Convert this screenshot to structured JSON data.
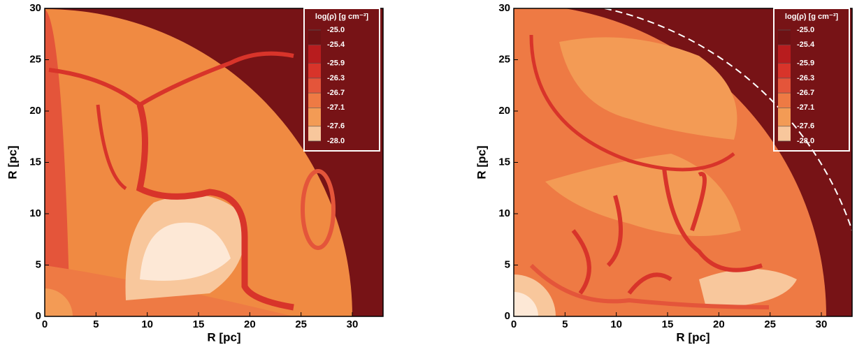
{
  "chart_data": [
    {
      "type": "contour",
      "xlabel": "R [pc]",
      "ylabel": "R [pc]",
      "xlim": [
        0,
        33
      ],
      "ylim": [
        0,
        30
      ],
      "xticks": [
        0,
        5,
        10,
        15,
        20,
        25,
        30
      ],
      "yticks": [
        0,
        5,
        10,
        15,
        20,
        25,
        30
      ],
      "colorbar": {
        "title": "log(ρ) [g cm⁻³]",
        "levels": [
          {
            "value": -25,
            "label": "-25.0"
          },
          -25.4,
          -25.9,
          -26.3,
          -26.7,
          -27.1,
          -27.6,
          {
            "value": -28,
            "label": "-28.0"
          }
        ],
        "colors": [
          "#6e1214",
          "#b81c1e",
          "#d8342a",
          "#e4553a",
          "#ee7a44",
          "#f39b55",
          "#f8c79c",
          "#ffffff"
        ]
      }
    },
    {
      "type": "contour",
      "xlabel": "R [pc]",
      "ylabel": "R [pc]",
      "xlim": [
        0,
        33
      ],
      "ylim": [
        0,
        30
      ],
      "xticks": [
        0,
        5,
        10,
        15,
        20,
        25,
        30
      ],
      "yticks": [
        0,
        5,
        10,
        15,
        20,
        25,
        30
      ],
      "colorbar": {
        "title": "log(ρ) [g cm⁻³]",
        "levels": [
          {
            "value": -25,
            "label": "-25.0"
          },
          -25.4,
          -25.9,
          -26.3,
          -26.7,
          -27.1,
          -27.6,
          {
            "value": -28,
            "label": "-28.0"
          }
        ],
        "colors": [
          "#6e1214",
          "#b81c1e",
          "#d8342a",
          "#e4553a",
          "#ee7a44",
          "#f39b55",
          "#f8c79c",
          "#ffffff"
        ]
      }
    }
  ]
}
